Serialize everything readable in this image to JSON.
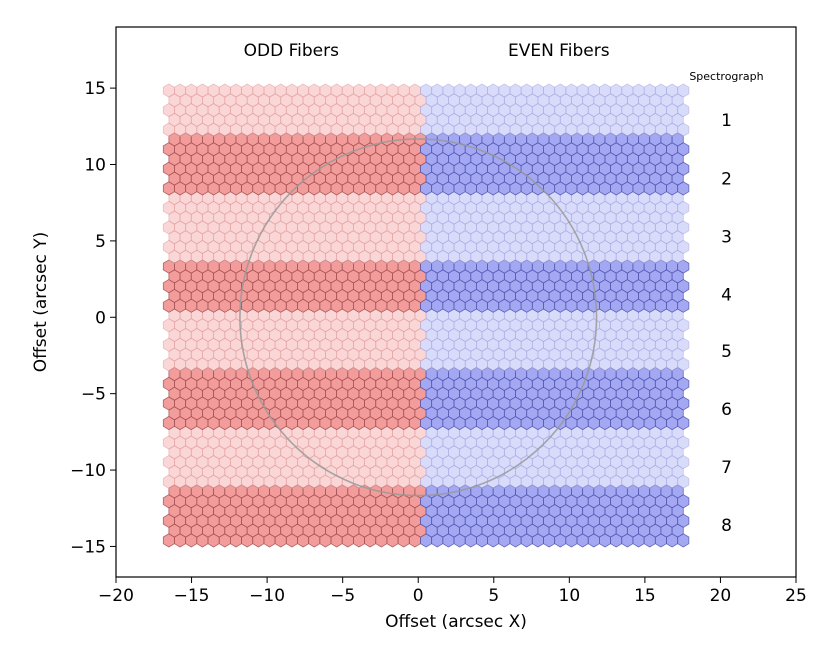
{
  "chart_data": {
    "type": "scatter",
    "marker": "hexagon",
    "xlabel": "Offset (arcsec X)",
    "ylabel": "Offset (arcsec Y)",
    "xlim": [
      -20,
      25
    ],
    "ylim": [
      -17,
      19
    ],
    "xticks": [
      "−20",
      "−15",
      "−10",
      "−5",
      "0",
      "5",
      "10",
      "15",
      "20",
      "25"
    ],
    "xtick_values": [
      -20,
      -15,
      -10,
      -5,
      0,
      5,
      10,
      15,
      20,
      25
    ],
    "yticks": [
      "−15",
      "−10",
      "−5",
      "0",
      "5",
      "10",
      "15"
    ],
    "ytick_values": [
      -15,
      -10,
      -5,
      0,
      5,
      10,
      15
    ],
    "grid": false,
    "fiber_grid": {
      "x_start": -16.5,
      "x_end": 17.9,
      "x_pitch": 0.74,
      "y_start": -14.6,
      "y_end": 15.2,
      "y_pitch": 0.64,
      "odd_even_split_x": 0.5
    },
    "series": [
      {
        "name": "ODD Fibers",
        "color": "#f08080",
        "x_range": [
          -16.5,
          0.5
        ]
      },
      {
        "name": "EVEN Fibers",
        "color": "#8a8ff0",
        "x_range": [
          0.5,
          17.9
        ]
      }
    ],
    "spectrograph_bands": [
      {
        "label": "1",
        "y_range": [
          11.8,
          15.2
        ],
        "shade": "light"
      },
      {
        "label": "2",
        "y_range": [
          8.2,
          11.8
        ],
        "shade": "dark"
      },
      {
        "label": "3",
        "y_range": [
          3.9,
          8.2
        ],
        "shade": "light"
      },
      {
        "label": "4",
        "y_range": [
          0.6,
          3.9
        ],
        "shade": "dark"
      },
      {
        "label": "5",
        "y_range": [
          -3.4,
          0.6
        ],
        "shade": "light"
      },
      {
        "label": "6",
        "y_range": [
          -7.2,
          -3.4
        ],
        "shade": "dark"
      },
      {
        "label": "7",
        "y_range": [
          -11.3,
          -7.2
        ],
        "shade": "light"
      },
      {
        "label": "8",
        "y_range": [
          -14.6,
          -11.3
        ],
        "shade": "dark"
      }
    ],
    "circle": {
      "center": [
        0,
        0
      ],
      "radius": 11.8,
      "color": "#999999"
    },
    "annotations": {
      "odd": {
        "text": "ODD Fibers",
        "x": -8.4,
        "y": 17.5
      },
      "even": {
        "text": "EVEN Fibers",
        "x": 9.3,
        "y": 17.5
      },
      "spectrograph_title": {
        "text": "Spectrograph",
        "x": 20.4,
        "y": 15.8
      },
      "spectrograph_numbers": [
        {
          "text": "1",
          "x": 20.4,
          "y": 12.9
        },
        {
          "text": "2",
          "x": 20.4,
          "y": 9.1
        },
        {
          "text": "3",
          "x": 20.4,
          "y": 5.3
        },
        {
          "text": "4",
          "x": 20.4,
          "y": 1.5
        },
        {
          "text": "5",
          "x": 20.4,
          "y": -2.2
        },
        {
          "text": "6",
          "x": 20.4,
          "y": -6.0
        },
        {
          "text": "7",
          "x": 20.4,
          "y": -9.8
        },
        {
          "text": "8",
          "x": 20.4,
          "y": -13.6
        }
      ]
    }
  }
}
